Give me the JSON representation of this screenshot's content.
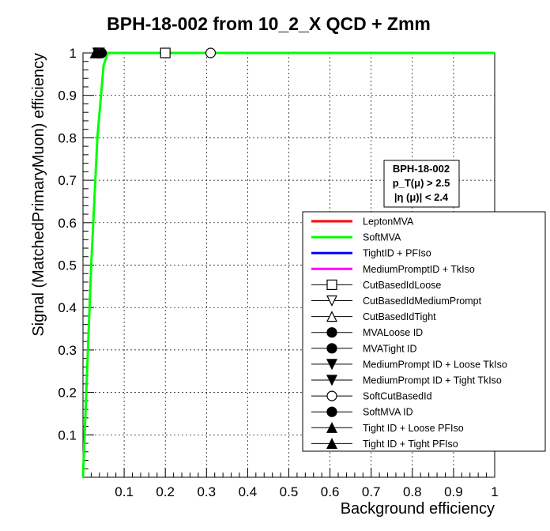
{
  "chart_data": {
    "type": "line",
    "title": "BPH-18-002 from 10_2_X QCD + Zmm",
    "xlabel": "Background efficiency",
    "ylabel": "Signal (MatchedPrimaryMuon) efficiency",
    "xlim": [
      0,
      1
    ],
    "ylim": [
      0,
      1
    ],
    "grid": true,
    "xticks": [
      "0.1",
      "0.2",
      "0.3",
      "0.4",
      "0.5",
      "0.6",
      "0.7",
      "0.8",
      "0.9",
      "1"
    ],
    "yticks": [
      "0.1",
      "0.2",
      "0.3",
      "0.4",
      "0.5",
      "0.6",
      "0.7",
      "0.8",
      "0.9",
      "1"
    ],
    "legend_position": "right",
    "info_box": {
      "line1": "BPH-18-002",
      "line2": "p_T(μ) > 2.5",
      "line3": "|η (μ)| < 2.4"
    },
    "series": [
      {
        "name": "LeptonMVA",
        "kind": "line",
        "color": "#ff0000",
        "x": [],
        "y": []
      },
      {
        "name": "SoftMVA",
        "kind": "line",
        "color": "#00ff00",
        "x": [
          0.0,
          0.02,
          0.035,
          0.05,
          0.06,
          0.08,
          1.0
        ],
        "y": [
          0.0,
          0.5,
          0.8,
          0.97,
          1.0,
          1.0,
          1.0
        ]
      },
      {
        "name": "TightID + PFIso",
        "kind": "line",
        "color": "#0000ff",
        "x": [],
        "y": []
      },
      {
        "name": "MediumPromptID + TkIso",
        "kind": "line",
        "color": "#ff00ff",
        "x": [],
        "y": []
      },
      {
        "name": "CutBasedIdLoose",
        "kind": "marker",
        "marker": "open-square",
        "x": [
          0.2
        ],
        "y": [
          1.0
        ]
      },
      {
        "name": "CutBasedIdMediumPrompt",
        "kind": "marker",
        "marker": "open-triangle-down",
        "x": [
          0.04
        ],
        "y": [
          1.0
        ]
      },
      {
        "name": "CutBasedIdTight",
        "kind": "marker",
        "marker": "open-triangle-up",
        "x": [
          0.035
        ],
        "y": [
          1.0
        ]
      },
      {
        "name": "MVALoose ID",
        "kind": "marker",
        "marker": "filled-circle",
        "x": [
          0.045
        ],
        "y": [
          1.0
        ]
      },
      {
        "name": "MVATight ID",
        "kind": "marker",
        "marker": "filled-circle",
        "x": [
          0.04
        ],
        "y": [
          1.0
        ]
      },
      {
        "name": "MediumPrompt ID + Loose TkIso",
        "kind": "marker",
        "marker": "filled-triangle-down",
        "x": [
          0.038
        ],
        "y": [
          1.0
        ]
      },
      {
        "name": "MediumPrompt ID + Tight TkIso",
        "kind": "marker",
        "marker": "filled-triangle-down",
        "x": [
          0.036
        ],
        "y": [
          1.0
        ]
      },
      {
        "name": "SoftCutBasedId",
        "kind": "marker",
        "marker": "open-circle",
        "x": [
          0.31
        ],
        "y": [
          1.0
        ]
      },
      {
        "name": "SoftMVA ID",
        "kind": "marker",
        "marker": "filled-circle",
        "x": [
          0.045
        ],
        "y": [
          1.0
        ]
      },
      {
        "name": "Tight ID + Loose PFIso",
        "kind": "marker",
        "marker": "filled-triangle-up",
        "x": [
          0.032
        ],
        "y": [
          1.0
        ]
      },
      {
        "name": "Tight ID + Tight PFIso",
        "kind": "marker",
        "marker": "filled-triangle-up",
        "x": [
          0.03
        ],
        "y": [
          1.0
        ]
      }
    ]
  }
}
